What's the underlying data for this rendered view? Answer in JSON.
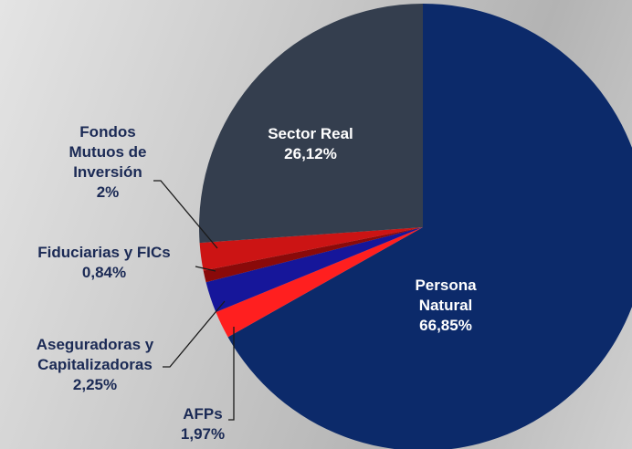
{
  "chart_data": {
    "type": "pie",
    "categories": [
      "Persona Natural",
      "AFPs",
      "Aseguradoras y Capitalizadoras",
      "Fiduciarias y FICs",
      "Fondos Mutuos de Inversión",
      "Sector Real"
    ],
    "values": [
      66.85,
      1.97,
      2.25,
      0.84,
      2,
      26.12
    ],
    "value_labels": [
      "66,85%",
      "1,97%",
      "2,25%",
      "0,84%",
      "2%",
      "26,12%"
    ],
    "colors": [
      "#0c2a6a",
      "#ff1f1f",
      "#16169a",
      "#8a0a0a",
      "#cc1414",
      "#343e4e"
    ]
  }
}
